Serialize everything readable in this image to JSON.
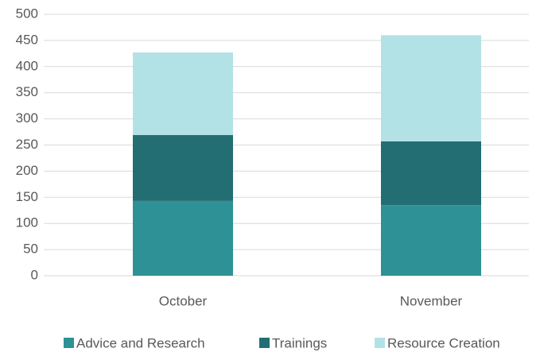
{
  "chart_data": {
    "type": "bar",
    "stacked": true,
    "categories": [
      "October",
      "November"
    ],
    "series": [
      {
        "name": "Advice and Research",
        "color": "#2e9196",
        "values": [
          143,
          135
        ]
      },
      {
        "name": "Trainings",
        "color": "#236e72",
        "values": [
          126,
          122
        ]
      },
      {
        "name": "Resource Creation",
        "color": "#b3e2e6",
        "values": [
          158,
          203
        ]
      }
    ],
    "ylim": [
      0,
      500
    ],
    "yticks": [
      0,
      50,
      100,
      150,
      200,
      250,
      300,
      350,
      400,
      450,
      500
    ],
    "grid": true,
    "legend": "bottom"
  }
}
